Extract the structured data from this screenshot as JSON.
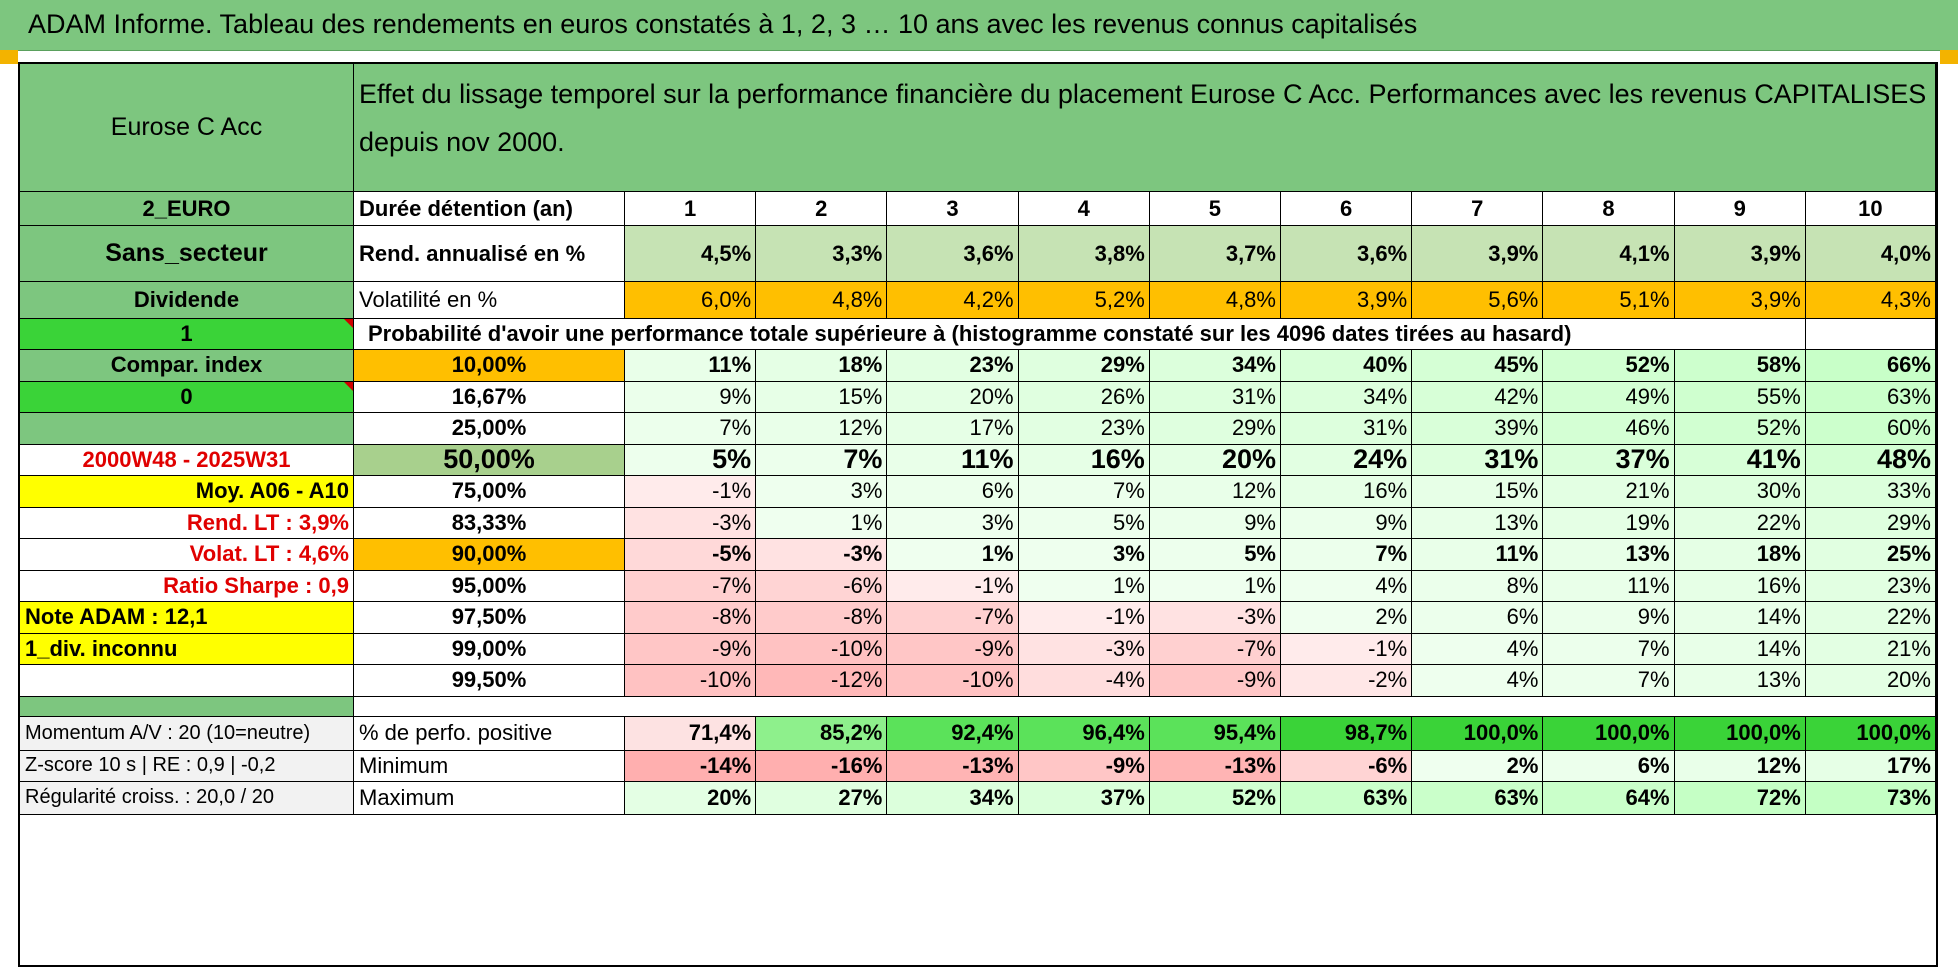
{
  "title": "ADAM Informe. Tableau des rendements en euros constatés à 1, 2, 3 … 10 ans avec les revenus connus capitalisés",
  "fund_name": "Eurose C Acc",
  "header_text": "Effet du lissage temporel sur la performance financière du placement Eurose C Acc. Performances avec les revenus CAPITALISES depuis nov 2000.",
  "left_labels": {
    "currency": "2_EURO",
    "sector": "Sans_secteur",
    "dividend": "Dividende",
    "one": "1",
    "compar": "Compar. index",
    "zero": "0",
    "blank": "",
    "period": "2000W48 - 2025W31",
    "moy": "Moy. A06 - A10",
    "rend_lt": "Rend. LT :    3,9%",
    "volat_lt": "Volat. LT :    4,6%",
    "sharpe": "Ratio Sharpe :    0,9",
    "note": "Note ADAM : 12,1",
    "div": "1_div. inconnu",
    "momentum": "Momentum A/V : 20 (10=neutre)",
    "zscore": "Z-score 10 s | RE : 0,9 | -0,2",
    "regularite": "Régularité croiss. : 20,0 / 20"
  },
  "row_labels": {
    "duree": "Durée détention (an)",
    "rend": "Rend. annualisé en %",
    "vol": "Volatilité en %",
    "prob": "Probabilité d'avoir une performance totale supérieure à (histogramme constaté sur les 4096 dates tirées au hasard)",
    "positive": "% de perfo. positive",
    "minimum": "Minimum",
    "maximum": "Maximum"
  },
  "years": [
    "1",
    "2",
    "3",
    "4",
    "5",
    "6",
    "7",
    "8",
    "9",
    "10"
  ],
  "rend_values": [
    "4,5%",
    "3,3%",
    "3,6%",
    "3,8%",
    "3,7%",
    "3,6%",
    "3,9%",
    "4,1%",
    "3,9%",
    "4,0%"
  ],
  "vol_values": [
    "6,0%",
    "4,8%",
    "4,2%",
    "5,2%",
    "4,8%",
    "3,9%",
    "5,6%",
    "5,1%",
    "3,9%",
    "4,3%"
  ],
  "percentile_rows": [
    {
      "pct": "10,00%",
      "values": [
        "11%",
        "18%",
        "23%",
        "29%",
        "34%",
        "40%",
        "45%",
        "52%",
        "58%",
        "66%"
      ]
    },
    {
      "pct": "16,67%",
      "values": [
        "9%",
        "15%",
        "20%",
        "26%",
        "31%",
        "34%",
        "42%",
        "49%",
        "55%",
        "63%"
      ]
    },
    {
      "pct": "25,00%",
      "values": [
        "7%",
        "12%",
        "17%",
        "23%",
        "29%",
        "31%",
        "39%",
        "46%",
        "52%",
        "60%"
      ]
    },
    {
      "pct": "50,00%",
      "values": [
        "5%",
        "7%",
        "11%",
        "16%",
        "20%",
        "24%",
        "31%",
        "37%",
        "41%",
        "48%"
      ]
    },
    {
      "pct": "75,00%",
      "values": [
        "-1%",
        "3%",
        "6%",
        "7%",
        "12%",
        "16%",
        "15%",
        "21%",
        "30%",
        "33%"
      ]
    },
    {
      "pct": "83,33%",
      "values": [
        "-3%",
        "1%",
        "3%",
        "5%",
        "9%",
        "9%",
        "13%",
        "19%",
        "22%",
        "29%"
      ]
    },
    {
      "pct": "90,00%",
      "values": [
        "-5%",
        "-3%",
        "1%",
        "3%",
        "5%",
        "7%",
        "11%",
        "13%",
        "18%",
        "25%"
      ]
    },
    {
      "pct": "95,00%",
      "values": [
        "-7%",
        "-6%",
        "-1%",
        "1%",
        "1%",
        "4%",
        "8%",
        "11%",
        "16%",
        "23%"
      ]
    },
    {
      "pct": "97,50%",
      "values": [
        "-8%",
        "-8%",
        "-7%",
        "-1%",
        "-3%",
        "2%",
        "6%",
        "9%",
        "14%",
        "22%"
      ]
    },
    {
      "pct": "99,00%",
      "values": [
        "-9%",
        "-10%",
        "-9%",
        "-3%",
        "-7%",
        "-1%",
        "4%",
        "7%",
        "14%",
        "21%"
      ]
    },
    {
      "pct": "99,50%",
      "values": [
        "-10%",
        "-12%",
        "-10%",
        "-4%",
        "-9%",
        "-2%",
        "4%",
        "7%",
        "13%",
        "20%"
      ]
    }
  ],
  "positive_values": [
    "71,4%",
    "85,2%",
    "92,4%",
    "96,4%",
    "95,4%",
    "98,7%",
    "100,0%",
    "100,0%",
    "100,0%",
    "100,0%"
  ],
  "minimum_values": [
    "-14%",
    "-16%",
    "-13%",
    "-9%",
    "-13%",
    "-6%",
    "2%",
    "6%",
    "12%",
    "17%"
  ],
  "maximum_values": [
    "20%",
    "27%",
    "34%",
    "37%",
    "52%",
    "63%",
    "63%",
    "64%",
    "72%",
    "73%"
  ],
  "colors": {
    "header_green": "#7dc67f",
    "bright_green": "#3ad338",
    "yellow": "#ffff00",
    "orange": "#ffbf00",
    "red_text": "#e00000"
  }
}
